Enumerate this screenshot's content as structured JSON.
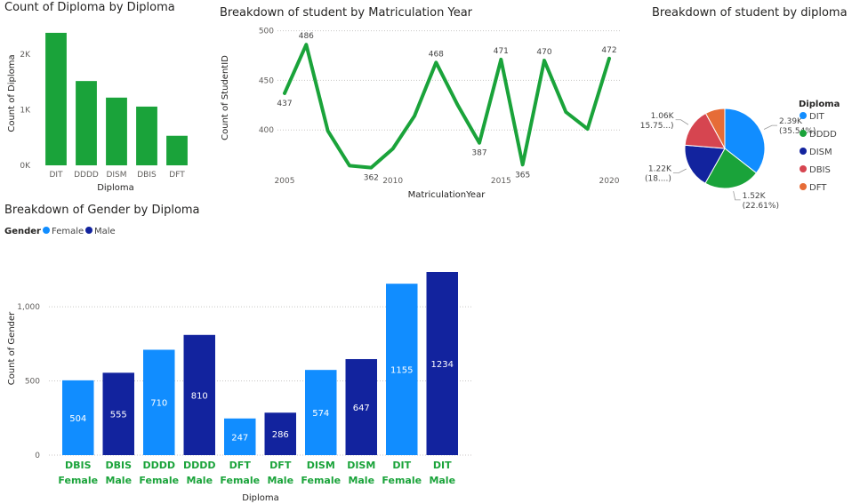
{
  "chart_data": [
    {
      "id": "c1",
      "type": "bar",
      "title": "Count of Diploma by Diploma",
      "xlabel": "Diploma",
      "ylabel": "Count of Diploma",
      "categories": [
        "DIT",
        "DDDD",
        "DISM",
        "DBIS",
        "DFT"
      ],
      "values": [
        2389,
        1520,
        1221,
        1059,
        533
      ],
      "ylim": [
        0,
        2500
      ],
      "yticks": [
        0,
        1000,
        2000
      ],
      "ytick_labels": [
        "0K",
        "1K",
        "2K"
      ],
      "color": "#1aa33a"
    },
    {
      "id": "c2",
      "type": "line",
      "title": "Breakdown of student by Matriculation Year",
      "xlabel": "MatriculationYear",
      "ylabel": "Count of StudentID",
      "x": [
        2005,
        2006,
        2007,
        2008,
        2009,
        2010,
        2011,
        2012,
        2013,
        2014,
        2015,
        2016,
        2017,
        2018,
        2019,
        2020
      ],
      "values": [
        437,
        486,
        399,
        364,
        362,
        381,
        414,
        468,
        425,
        387,
        471,
        365,
        470,
        418,
        401,
        472
      ],
      "labels": [
        "437",
        "486",
        "",
        "",
        "362",
        "",
        "",
        "468",
        "",
        "387",
        "471",
        "365",
        "470",
        "",
        "",
        "472"
      ],
      "xlim": [
        2005,
        2020
      ],
      "ylim": [
        350,
        505
      ],
      "yticks": [
        400,
        450,
        500
      ],
      "xticks": [
        2005,
        2010,
        2015,
        2020
      ],
      "grid": true,
      "color": "#1aa33a"
    },
    {
      "id": "c3",
      "type": "pie",
      "title": "Breakdown of student by diploma",
      "legend_title": "Diploma",
      "legend_position": "right",
      "slices": [
        {
          "name": "DIT",
          "value": 2389,
          "color": "#118dff",
          "label1": "2.39K",
          "label2": "(35.54%)"
        },
        {
          "name": "DDDD",
          "value": 1520,
          "color": "#1aa33a",
          "label1": "1.52K",
          "label2": "(22.61%)"
        },
        {
          "name": "DISM",
          "value": 1221,
          "color": "#12239e",
          "label1": "1.22K",
          "label2": "(18....)"
        },
        {
          "name": "DBIS",
          "value": 1059,
          "color": "#d64550",
          "label1": "1.06K",
          "label2": "(15.75...)"
        },
        {
          "name": "DFT",
          "value": 533,
          "color": "#e66c37",
          "label1": "",
          "label2": ""
        }
      ]
    },
    {
      "id": "c4",
      "type": "bar",
      "title": "Breakdown of Gender by Diploma",
      "xlabel": "Diploma",
      "ylabel": "Count of Gender",
      "legend_title": "Gender",
      "legend_position": "top-left",
      "series_names": [
        "Female",
        "Male"
      ],
      "series_colors": {
        "Female": "#118dff",
        "Male": "#12239e"
      },
      "categories": [
        {
          "diploma": "DBIS",
          "gender": "Female",
          "value": 504
        },
        {
          "diploma": "DBIS",
          "gender": "Male",
          "value": 555
        },
        {
          "diploma": "DDDD",
          "gender": "Female",
          "value": 710
        },
        {
          "diploma": "DDDD",
          "gender": "Male",
          "value": 810
        },
        {
          "diploma": "DFT",
          "gender": "Female",
          "value": 247
        },
        {
          "diploma": "DFT",
          "gender": "Male",
          "value": 286
        },
        {
          "diploma": "DISM",
          "gender": "Female",
          "value": 574
        },
        {
          "diploma": "DISM",
          "gender": "Male",
          "value": 647
        },
        {
          "diploma": "DIT",
          "gender": "Female",
          "value": 1155
        },
        {
          "diploma": "DIT",
          "gender": "Male",
          "value": 1234
        }
      ],
      "ylim": [
        0,
        1240
      ],
      "yticks": [
        0,
        500,
        1000
      ],
      "ytick_labels": [
        "0",
        "500",
        "1,000"
      ],
      "grid": true
    }
  ]
}
